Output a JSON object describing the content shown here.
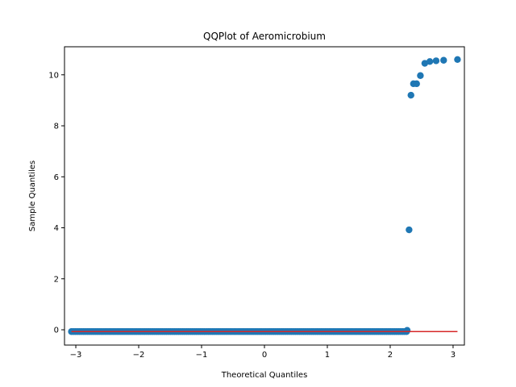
{
  "chart_data": {
    "type": "scatter",
    "title": "QQPlot of Aeromicrobium",
    "xlabel": "Theoretical Quantiles",
    "ylabel": "Sample Quantiles",
    "xlim": [
      -3.18,
      3.18
    ],
    "ylim": [
      -0.6,
      11.1
    ],
    "xticks": [
      -3,
      -2,
      -1,
      0,
      1,
      2,
      3
    ],
    "xtick_labels": [
      "−3",
      "−2",
      "−1",
      "0",
      "1",
      "2",
      "3"
    ],
    "yticks": [
      0,
      2,
      4,
      6,
      8,
      10
    ],
    "ytick_labels": [
      "0",
      "2",
      "4",
      "6",
      "8",
      "10"
    ],
    "grid": false,
    "marker_color": "#1f77b4",
    "line_color": "#d62728",
    "reference_line": {
      "x": [
        -3.07,
        3.07
      ],
      "y": [
        -0.07,
        -0.07
      ]
    },
    "dense_cluster": {
      "x_start": -3.07,
      "x_end": 2.26,
      "y": -0.07,
      "count": 170
    },
    "points": [
      {
        "x": 2.27,
        "y": -0.02
      },
      {
        "x": 2.3,
        "y": 3.92
      },
      {
        "x": 2.33,
        "y": 9.2
      },
      {
        "x": 2.37,
        "y": 9.65
      },
      {
        "x": 2.42,
        "y": 9.65
      },
      {
        "x": 2.48,
        "y": 9.97
      },
      {
        "x": 2.55,
        "y": 10.45
      },
      {
        "x": 2.63,
        "y": 10.52
      },
      {
        "x": 2.73,
        "y": 10.55
      },
      {
        "x": 2.85,
        "y": 10.57
      },
      {
        "x": 3.07,
        "y": 10.6
      }
    ]
  }
}
